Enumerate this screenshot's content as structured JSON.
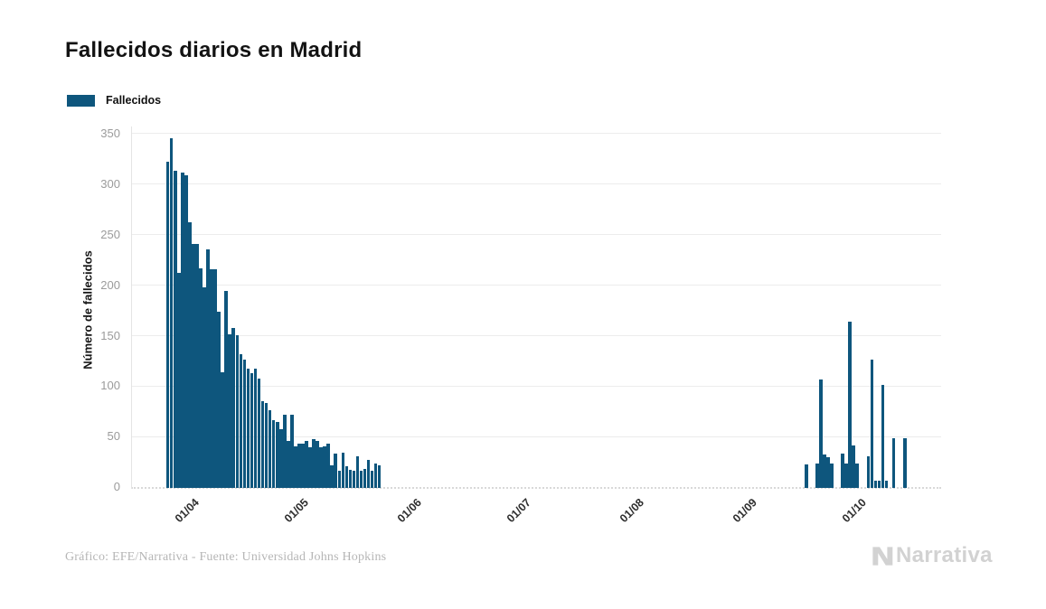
{
  "header": {
    "title": "Fallecidos diarios en Madrid"
  },
  "legend": {
    "label": "Fallecidos",
    "swatch_color": "#0E567D"
  },
  "footer": {
    "credit": "Gráfico: EFE/Narrativa - Fuente: Universidad Johns Hopkins",
    "brand": "Narrativa"
  },
  "colors": {
    "bar": "#0E567D",
    "grid": "#ececec",
    "axis_text": "#9b9b9b",
    "logo": "#d2d2d2"
  },
  "chart_data": {
    "type": "bar",
    "title": "Fallecidos diarios en Madrid",
    "series_name": "Fallecidos",
    "xlabel": "",
    "ylabel": "Número de fallecidos",
    "ylim": [
      0,
      350
    ],
    "yticks": [
      0,
      50,
      100,
      150,
      200,
      250,
      300,
      350
    ],
    "xticks": [
      "01/04",
      "01/05",
      "01/06",
      "01/07",
      "01/08",
      "01/09",
      "01/10"
    ],
    "grid": "horizontal",
    "legend_position": "top-left",
    "bar_color": "#0E567D",
    "points": [
      {
        "date": "28/03",
        "value": 322
      },
      {
        "date": "29/03",
        "value": 345
      },
      {
        "date": "30/03",
        "value": 313
      },
      {
        "date": "31/03",
        "value": 212
      },
      {
        "date": "01/04",
        "value": 311
      },
      {
        "date": "02/04",
        "value": 308
      },
      {
        "date": "03/04",
        "value": 262
      },
      {
        "date": "04/04",
        "value": 240
      },
      {
        "date": "05/04",
        "value": 240
      },
      {
        "date": "06/04",
        "value": 216
      },
      {
        "date": "07/04",
        "value": 197
      },
      {
        "date": "08/04",
        "value": 235
      },
      {
        "date": "09/04",
        "value": 215
      },
      {
        "date": "10/04",
        "value": 215
      },
      {
        "date": "11/04",
        "value": 173
      },
      {
        "date": "12/04",
        "value": 113
      },
      {
        "date": "13/04",
        "value": 194
      },
      {
        "date": "14/04",
        "value": 151
      },
      {
        "date": "15/04",
        "value": 157
      },
      {
        "date": "16/04",
        "value": 150
      },
      {
        "date": "17/04",
        "value": 131
      },
      {
        "date": "18/04",
        "value": 126
      },
      {
        "date": "19/04",
        "value": 117
      },
      {
        "date": "20/04",
        "value": 112
      },
      {
        "date": "21/04",
        "value": 117
      },
      {
        "date": "22/04",
        "value": 107
      },
      {
        "date": "23/04",
        "value": 85
      },
      {
        "date": "24/04",
        "value": 83
      },
      {
        "date": "25/04",
        "value": 76
      },
      {
        "date": "26/04",
        "value": 66
      },
      {
        "date": "27/04",
        "value": 64
      },
      {
        "date": "28/04",
        "value": 57
      },
      {
        "date": "29/04",
        "value": 71
      },
      {
        "date": "30/04",
        "value": 45
      },
      {
        "date": "01/05",
        "value": 71
      },
      {
        "date": "02/05",
        "value": 40
      },
      {
        "date": "03/05",
        "value": 43
      },
      {
        "date": "04/05",
        "value": 43
      },
      {
        "date": "05/05",
        "value": 45
      },
      {
        "date": "06/05",
        "value": 39
      },
      {
        "date": "07/05",
        "value": 47
      },
      {
        "date": "08/05",
        "value": 45
      },
      {
        "date": "09/05",
        "value": 39
      },
      {
        "date": "10/05",
        "value": 40
      },
      {
        "date": "11/05",
        "value": 43
      },
      {
        "date": "12/05",
        "value": 21
      },
      {
        "date": "13/05",
        "value": 33
      },
      {
        "date": "14/05",
        "value": 16
      },
      {
        "date": "15/05",
        "value": 34
      },
      {
        "date": "16/05",
        "value": 20
      },
      {
        "date": "17/05",
        "value": 17
      },
      {
        "date": "18/05",
        "value": 16
      },
      {
        "date": "19/05",
        "value": 30
      },
      {
        "date": "20/05",
        "value": 16
      },
      {
        "date": "21/05",
        "value": 18
      },
      {
        "date": "22/05",
        "value": 27
      },
      {
        "date": "23/05",
        "value": 16
      },
      {
        "date": "24/05",
        "value": 23
      },
      {
        "date": "25/05",
        "value": 21
      },
      {
        "date": "19/09",
        "value": 22
      },
      {
        "date": "20/09",
        "value": 0
      },
      {
        "date": "21/09",
        "value": 0
      },
      {
        "date": "22/09",
        "value": 23
      },
      {
        "date": "23/09",
        "value": 106
      },
      {
        "date": "24/09",
        "value": 32
      },
      {
        "date": "25/09",
        "value": 29
      },
      {
        "date": "26/09",
        "value": 23
      },
      {
        "date": "27/09",
        "value": 0
      },
      {
        "date": "28/09",
        "value": 0
      },
      {
        "date": "29/09",
        "value": 33
      },
      {
        "date": "30/09",
        "value": 23
      },
      {
        "date": "01/10",
        "value": 163
      },
      {
        "date": "02/10",
        "value": 41
      },
      {
        "date": "03/10",
        "value": 23
      },
      {
        "date": "04/10",
        "value": 0
      },
      {
        "date": "05/10",
        "value": 0
      },
      {
        "date": "06/10",
        "value": 30
      },
      {
        "date": "07/10",
        "value": 126
      },
      {
        "date": "08/10",
        "value": 6
      },
      {
        "date": "09/10",
        "value": 6
      },
      {
        "date": "10/10",
        "value": 101
      },
      {
        "date": "11/10",
        "value": 6
      },
      {
        "date": "12/10",
        "value": 0
      },
      {
        "date": "13/10",
        "value": 48
      },
      {
        "date": "14/10",
        "value": 0
      },
      {
        "date": "15/10",
        "value": 0
      },
      {
        "date": "16/10",
        "value": 48
      }
    ]
  }
}
